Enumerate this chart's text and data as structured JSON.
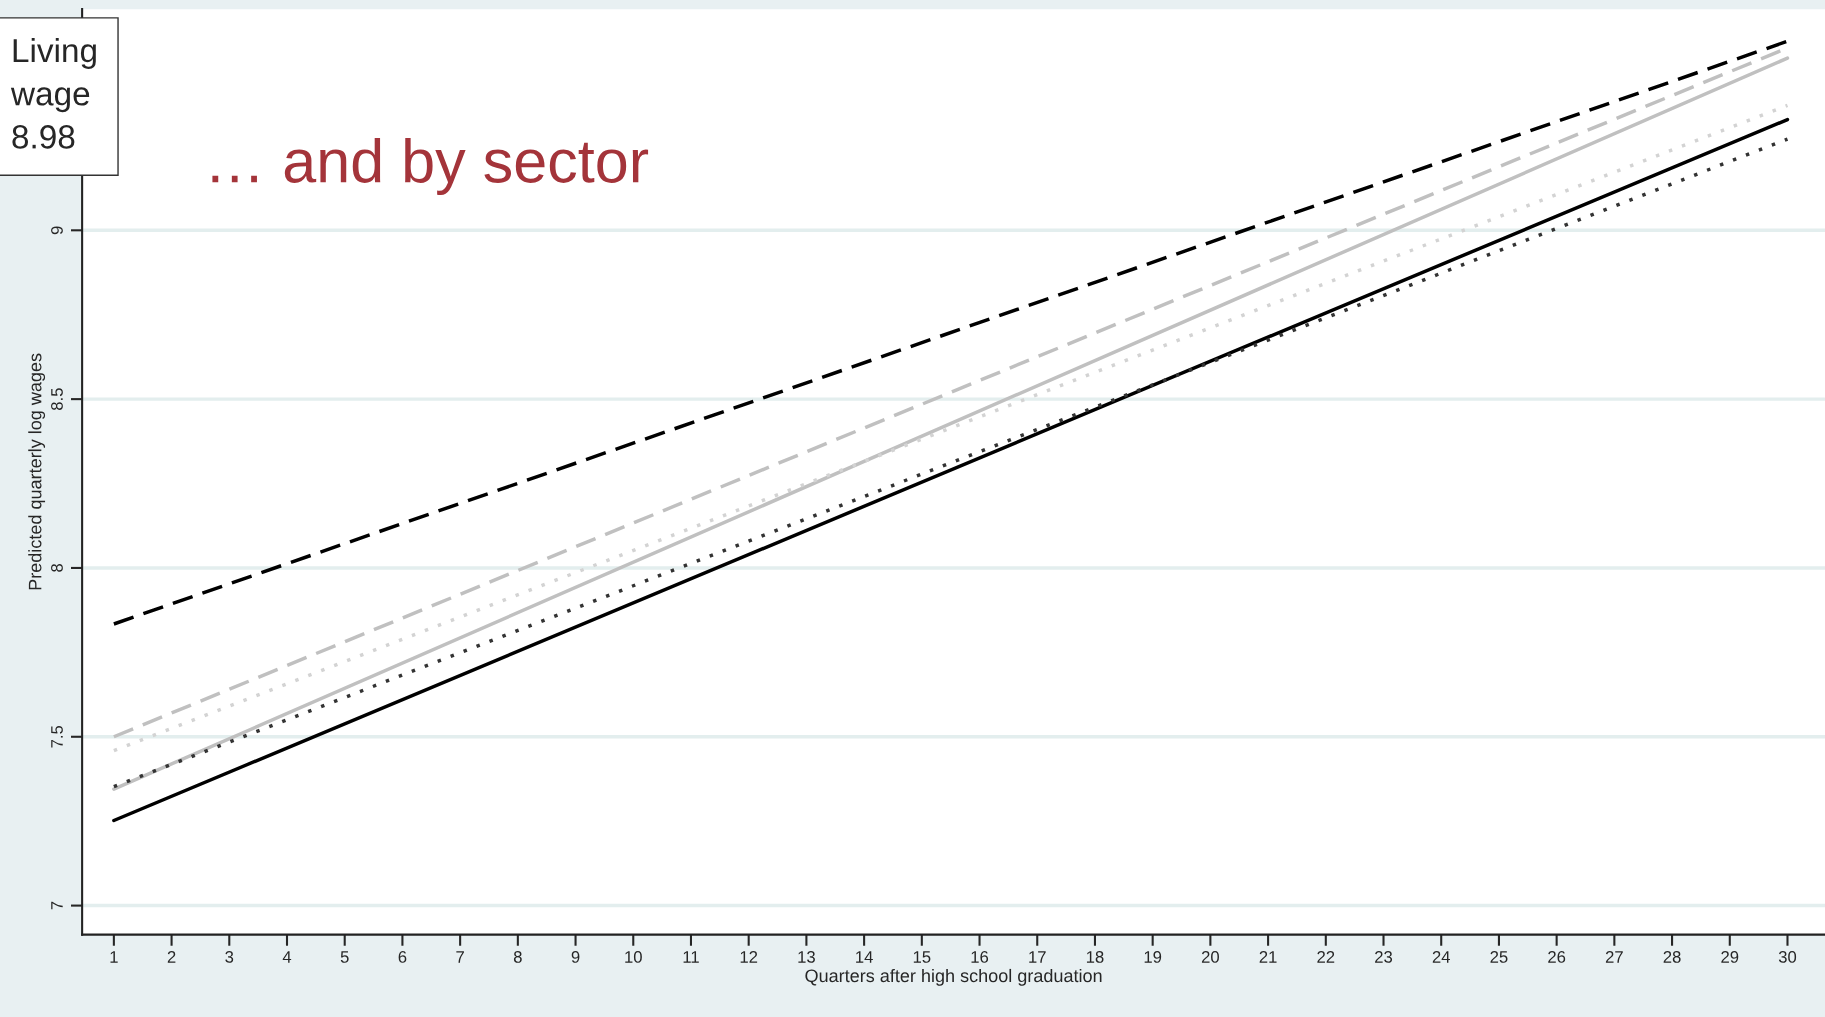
{
  "chart_data": {
    "type": "line",
    "xlabel": "Quarters after high school graduation",
    "ylabel": "Predicted quarterly log wages",
    "xlim": [
      0.45,
      30.65
    ],
    "xticks": [
      1,
      2,
      3,
      4,
      5,
      6,
      7,
      8,
      9,
      10,
      11,
      12,
      13,
      14,
      15,
      16,
      17,
      18,
      19,
      20,
      21,
      22,
      23,
      24,
      25,
      26,
      27,
      28,
      29,
      30
    ],
    "x": [
      1,
      30
    ],
    "ylim": [
      6.914,
      9.655
    ],
    "yticks": [
      7,
      7.5,
      8,
      8.5,
      9
    ],
    "grid": "y",
    "legend": false,
    "series": [
      {
        "color": "#000000",
        "line_style": "dashed",
        "values": [
          7.834,
          9.56
        ]
      },
      {
        "color": "#c0c0c0",
        "line_style": "dashed",
        "values": [
          7.5,
          9.54
        ]
      },
      {
        "color": "#c0c0c0",
        "line_style": "solid",
        "values": [
          7.345,
          9.51
        ]
      },
      {
        "color": "#d3d3d3",
        "line_style": "dotted",
        "values": [
          7.459,
          9.37
        ]
      },
      {
        "color": "#000000",
        "line_style": "solid",
        "values": [
          7.252,
          9.328
        ]
      },
      {
        "color": "#333333",
        "line_style": "dotted",
        "values": [
          7.352,
          9.27
        ]
      }
    ],
    "annotations": [
      "Living\nwage\n8.98",
      "… and by sector"
    ]
  }
}
